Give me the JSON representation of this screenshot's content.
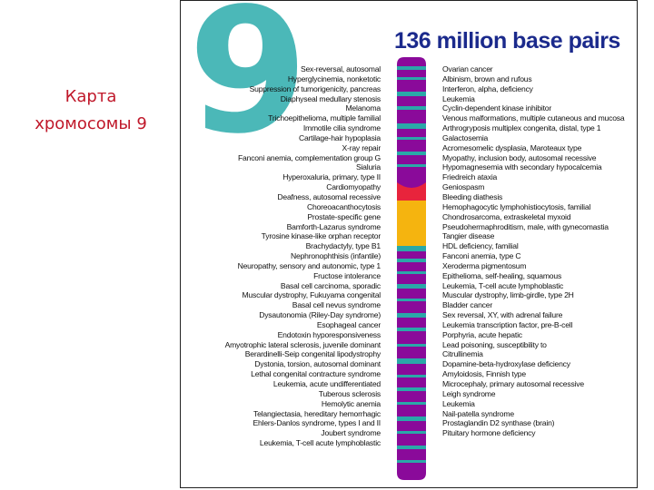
{
  "slide_title_line1": "Карта",
  "slide_title_line2": "хромосомы 9",
  "chromosome_number": "9",
  "base_pairs_title": "136 million base pairs",
  "colors": {
    "title": "#c0182a",
    "nine": "#4bb8b8",
    "header": "#1b2a8c",
    "arm": "#8a0a9a",
    "band": "#2aa8a8",
    "centromere": "#e8243c",
    "heterochromatin": "#f5b40f"
  },
  "left_labels": [
    "Sex-reversal, autosomal",
    "Hyperglycinemia, nonketotic",
    "Suppression of tumorigenicity, pancreas",
    "Diaphyseal medullary stenosis",
    "Melanoma",
    "Trichoepithelioma, multiple familial",
    "Immotile cilia syndrome",
    "Cartilage-hair hypoplasia",
    "X-ray repair",
    "Fanconi anemia, complementation group G",
    "Sialuria",
    "Hyperoxaluria, primary, type II",
    "Cardiomyopathy",
    "Deafness, autosomal recessive",
    "Choreoacanthocytosis",
    "Prostate-specific gene",
    "Bamforth-Lazarus syndrome",
    "Tyrosine kinase-like orphan receptor",
    "Brachydactyly, type B1",
    "Nephronophthisis (infantile)",
    "Neuropathy, sensory and autonomic, type 1",
    "Fructose intolerance",
    "Basal cell carcinoma, sporadic",
    "Muscular dystrophy, Fukuyama congenital",
    "Basal cell nevus syndrome",
    "Dysautonomia (Riley-Day syndrome)",
    "Esophageal cancer",
    "Endotoxin hyporesponsiveness",
    "Amyotrophic lateral sclerosis, juvenile dominant",
    "Berardinelli-Seip congenital lipodystrophy",
    "Dystonia, torsion, autosomal dominant",
    "Lethal congenital contracture syndrome",
    "Leukemia, acute undifferentiated",
    "Tuberous sclerosis",
    "Hemolytic anemia",
    "Telangiectasia, hereditary hemorrhagic",
    "Ehlers-Danlos syndrome, types I and II",
    "Joubert syndrome",
    "Leukemia, T-cell acute lymphoblastic"
  ],
  "right_labels": [
    "Ovarian cancer",
    "Albinism, brown and rufous",
    "Interferon, alpha, deficiency",
    "Leukemia",
    "Cyclin-dependent kinase inhibitor",
    "Venous malformations, multiple cutaneous and mucosa",
    "Arthrogryposis multiplex congenita, distal, type 1",
    "Galactosemia",
    "Acromesomelic dysplasia, Maroteaux type",
    "Myopathy, inclusion body, autosomal recessive",
    "Hypomagnesemia with secondary hypocalcemia",
    "Friedreich ataxia",
    "Geniospasm",
    "Bleeding diathesis",
    "Hemophagocytic lymphohistiocytosis, familial",
    "Chondrosarcoma, extraskeletal myxoid",
    "Pseudohermaphroditism, male, with gynecomastia",
    "Tangier disease",
    "HDL deficiency, familial",
    "Fanconi anemia, type C",
    "Xeroderma pigmentosum",
    "Epithelioma, self-healing, squamous",
    "Leukemia, T-cell acute lymphoblastic",
    "Muscular dystrophy, limb-girdle, type 2H",
    "Bladder cancer",
    "Sex reversal, XY, with adrenal failure",
    "Leukemia transcription factor, pre-B-cell",
    "Porphyria, acute hepatic",
    "Lead poisoning, susceptibility to",
    "Citrullinemia",
    "Dopamine-beta-hydroxylase deficiency",
    "Amyloidosis, Finnish type",
    "Microcephaly, primary autosomal recessive",
    "Leigh syndrome",
    "Leukemia",
    "Nail-patella syndrome",
    "Prostaglandin D2 synthase (brain)",
    "Pituitary hormone deficiency"
  ]
}
